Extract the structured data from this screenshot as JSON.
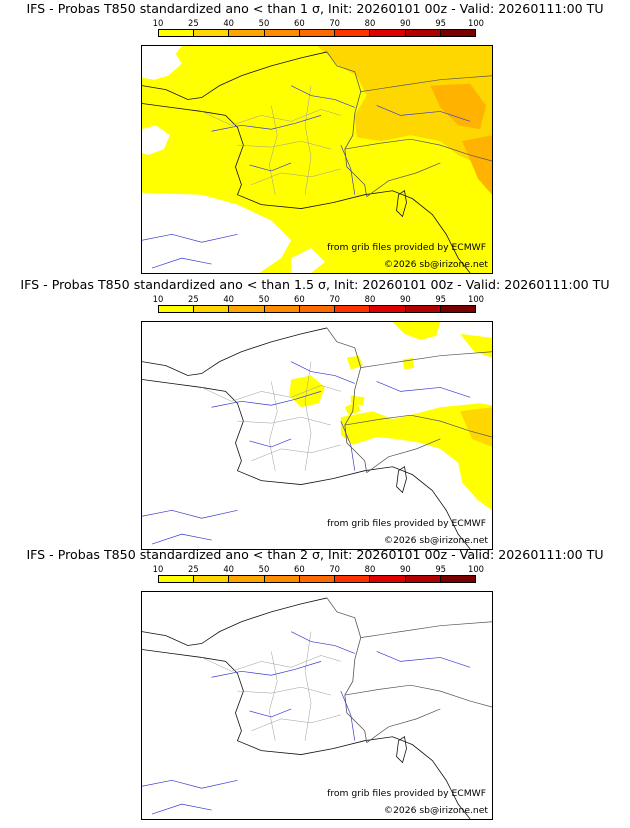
{
  "legend": {
    "ticks": [
      "10",
      "25",
      "40",
      "50",
      "60",
      "70",
      "80",
      "90",
      "95",
      "100"
    ],
    "colors": [
      "#ffff00",
      "#ffd700",
      "#ffa500",
      "#ff8c00",
      "#ff6a00",
      "#ff3300",
      "#e00000",
      "#b00000",
      "#7a0000"
    ]
  },
  "panels": [
    {
      "title": "IFS - Probas T850  standardized ano < than 1 σ, Init: 20260101 00z - Valid: 20260111:00 TU",
      "credit_source": "from grib files provided by ECMWF",
      "credit_copyright": "©2026 sb@irizone.net",
      "coverage": "extensive"
    },
    {
      "title": "IFS - Probas T850  standardized ano < than 1.5 σ, Init: 20260101 00z - Valid: 20260111:00 TU",
      "credit_source": "from grib files provided by ECMWF",
      "credit_copyright": "©2026 sb@irizone.net",
      "coverage": "partial"
    },
    {
      "title": "IFS - Probas T850  standardized ano < than 2 σ, Init: 20260101 00z - Valid: 20260111:00 TU",
      "credit_source": "from grib files provided by ECMWF",
      "credit_copyright": "©2026 sb@irizone.net",
      "coverage": "none"
    }
  ]
}
